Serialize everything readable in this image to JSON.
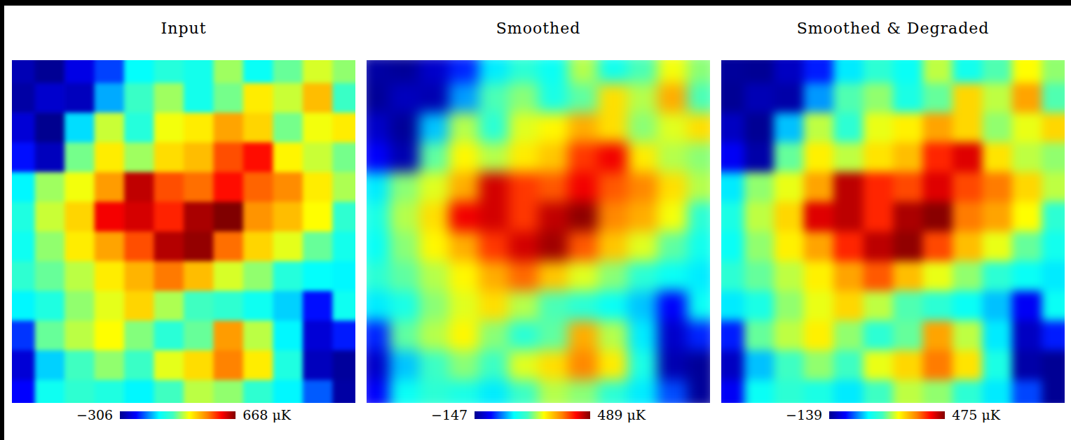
{
  "chart_data": [
    {
      "type": "heatmap",
      "title": "Input",
      "tick_labels": false,
      "colorbar_range": [
        -306,
        668
      ],
      "colorbar_ticks": [
        {
          "value": -306,
          "label": "−306"
        },
        {
          "value": 668,
          "label": "668 μK"
        }
      ],
      "cells": [
        [
          -260,
          -300,
          -200,
          -120,
          30,
          90,
          60,
          210,
          40,
          170,
          250,
          200
        ],
        [
          -280,
          -230,
          -250,
          -40,
          130,
          210,
          60,
          180,
          300,
          240,
          360,
          130
        ],
        [
          -220,
          -306,
          0,
          240,
          90,
          270,
          300,
          390,
          330,
          180,
          270,
          300
        ],
        [
          -160,
          -250,
          180,
          300,
          210,
          320,
          360,
          480,
          540,
          290,
          240,
          180
        ],
        [
          20,
          210,
          270,
          400,
          610,
          480,
          450,
          540,
          460,
          420,
          300,
          220
        ],
        [
          80,
          240,
          330,
          560,
          590,
          520,
          630,
          668,
          410,
          360,
          280,
          110
        ],
        [
          50,
          200,
          300,
          390,
          480,
          620,
          650,
          450,
          330,
          260,
          170,
          60
        ],
        [
          110,
          170,
          230,
          300,
          370,
          440,
          360,
          250,
          200,
          90,
          30,
          20
        ],
        [
          20,
          80,
          200,
          260,
          330,
          220,
          140,
          110,
          50,
          -10,
          -160,
          50
        ],
        [
          -130,
          170,
          230,
          280,
          190,
          100,
          170,
          400,
          230,
          20,
          -220,
          -150
        ],
        [
          -220,
          -10,
          140,
          200,
          130,
          260,
          320,
          430,
          300,
          80,
          -250,
          -290
        ],
        [
          -170,
          50,
          110,
          80,
          20,
          140,
          230,
          200,
          110,
          20,
          -100,
          -280
        ]
      ]
    },
    {
      "type": "heatmap",
      "title": "Smoothed",
      "tick_labels": false,
      "colorbar_range": [
        -147,
        489
      ],
      "colorbar_ticks": [
        {
          "value": -147,
          "label": "−147"
        },
        {
          "value": 489,
          "label": "489 μK"
        }
      ],
      "cells": [
        [
          -130,
          -140,
          -100,
          -40,
          60,
          120,
          80,
          200,
          90,
          150,
          230,
          180
        ],
        [
          -140,
          -110,
          -120,
          20,
          150,
          180,
          100,
          160,
          260,
          200,
          300,
          150
        ],
        [
          -100,
          -140,
          40,
          200,
          120,
          220,
          240,
          300,
          260,
          180,
          220,
          260
        ],
        [
          -60,
          -120,
          160,
          240,
          200,
          250,
          280,
          380,
          420,
          250,
          200,
          180
        ],
        [
          60,
          180,
          220,
          300,
          440,
          380,
          360,
          420,
          360,
          330,
          260,
          200
        ],
        [
          100,
          200,
          260,
          420,
          440,
          380,
          450,
          480,
          330,
          300,
          230,
          120
        ],
        [
          80,
          180,
          240,
          300,
          380,
          440,
          470,
          360,
          280,
          220,
          160,
          90
        ],
        [
          120,
          160,
          200,
          240,
          300,
          350,
          280,
          220,
          180,
          120,
          80,
          60
        ],
        [
          60,
          100,
          180,
          220,
          260,
          200,
          150,
          120,
          80,
          40,
          -60,
          80
        ],
        [
          -40,
          160,
          200,
          240,
          180,
          120,
          160,
          300,
          200,
          60,
          -100,
          -40
        ],
        [
          -100,
          40,
          140,
          180,
          140,
          220,
          260,
          330,
          250,
          100,
          -120,
          -140
        ],
        [
          -60,
          80,
          120,
          100,
          60,
          140,
          200,
          180,
          120,
          60,
          -20,
          -140
        ]
      ]
    },
    {
      "type": "heatmap",
      "title": "Smoothed & Degraded",
      "tick_labels": false,
      "colorbar_range": [
        -139,
        475
      ],
      "colorbar_ticks": [
        {
          "value": -139,
          "label": "−139"
        },
        {
          "value": 475,
          "label": "475 μK"
        }
      ],
      "cells": [
        [
          -130,
          -135,
          -100,
          -40,
          60,
          120,
          80,
          200,
          90,
          150,
          230,
          180
        ],
        [
          -135,
          -110,
          -120,
          20,
          150,
          180,
          100,
          160,
          260,
          200,
          300,
          150
        ],
        [
          -100,
          -135,
          40,
          200,
          120,
          220,
          240,
          300,
          260,
          180,
          220,
          260
        ],
        [
          -60,
          -120,
          160,
          240,
          200,
          250,
          280,
          380,
          420,
          250,
          200,
          180
        ],
        [
          60,
          180,
          220,
          300,
          440,
          380,
          360,
          420,
          360,
          330,
          260,
          200
        ],
        [
          100,
          200,
          260,
          420,
          440,
          380,
          450,
          470,
          330,
          300,
          230,
          120
        ],
        [
          80,
          180,
          240,
          300,
          380,
          440,
          465,
          360,
          280,
          220,
          160,
          90
        ],
        [
          120,
          160,
          200,
          240,
          300,
          350,
          280,
          220,
          180,
          120,
          80,
          60
        ],
        [
          60,
          100,
          180,
          220,
          260,
          200,
          150,
          120,
          80,
          40,
          -60,
          80
        ],
        [
          -40,
          160,
          200,
          240,
          180,
          120,
          160,
          300,
          200,
          60,
          -100,
          -40
        ],
        [
          -100,
          40,
          140,
          180,
          140,
          220,
          260,
          330,
          250,
          100,
          -120,
          -135
        ],
        [
          -60,
          80,
          120,
          100,
          60,
          140,
          200,
          180,
          120,
          60,
          -20,
          -135
        ]
      ]
    }
  ]
}
